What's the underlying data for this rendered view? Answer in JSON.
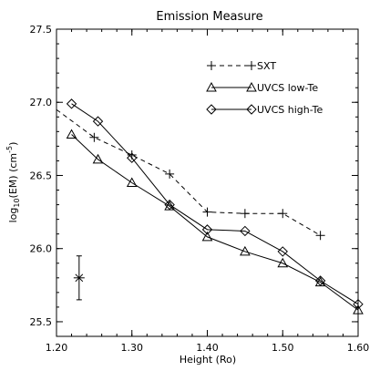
{
  "chart_data": {
    "type": "line",
    "title": "Emission Measure",
    "xlabel": "Height (Ro)",
    "ylabel": {
      "pre": "log",
      "sub": "10",
      "mid": "(EM) (cm",
      "sup": "-5",
      "post": ")"
    },
    "xlim": [
      1.2,
      1.6
    ],
    "ylim": [
      25.4,
      27.5
    ],
    "xticks": [
      1.2,
      1.3,
      1.4,
      1.5,
      1.6
    ],
    "xtick_labels": [
      "1.20",
      "1.30",
      "1.40",
      "1.50",
      "1.60"
    ],
    "yticks": [
      25.5,
      26.0,
      26.5,
      27.0,
      27.5
    ],
    "ytick_labels": [
      "25.5",
      "26.0",
      "26.5",
      "27.0",
      "27.5"
    ],
    "grid": false,
    "legend_position": "top-right",
    "series": [
      {
        "name": "SXT",
        "line": "dashed",
        "marker": "plus",
        "x": [
          1.2,
          1.25,
          1.3,
          1.35,
          1.4,
          1.45,
          1.5,
          1.55
        ],
        "y": [
          26.95,
          26.76,
          26.64,
          26.51,
          26.25,
          26.24,
          26.24,
          26.09
        ],
        "marker_x": [
          1.25,
          1.3,
          1.35,
          1.4,
          1.45,
          1.5,
          1.55
        ],
        "marker_y": [
          26.76,
          26.64,
          26.51,
          26.25,
          26.24,
          26.24,
          26.09
        ]
      },
      {
        "name": "UVCS low-Te",
        "line": "solid",
        "marker": "triangle",
        "x": [
          1.22,
          1.255,
          1.3,
          1.35,
          1.4,
          1.45,
          1.5,
          1.55,
          1.6
        ],
        "y": [
          26.78,
          26.61,
          26.45,
          26.29,
          26.08,
          25.98,
          25.9,
          25.77,
          25.58
        ],
        "marker_x": [
          1.22,
          1.255,
          1.3,
          1.35,
          1.4,
          1.45,
          1.5,
          1.55,
          1.6
        ],
        "marker_y": [
          26.78,
          26.61,
          26.45,
          26.29,
          26.08,
          25.98,
          25.9,
          25.77,
          25.58
        ]
      },
      {
        "name": "UVCS high-Te",
        "line": "solid",
        "marker": "diamond",
        "x": [
          1.22,
          1.255,
          1.3,
          1.35,
          1.4,
          1.45,
          1.5,
          1.55,
          1.6
        ],
        "y": [
          26.99,
          26.87,
          26.62,
          26.3,
          26.13,
          26.12,
          25.98,
          25.78,
          25.62
        ],
        "marker_x": [
          1.22,
          1.255,
          1.3,
          1.35,
          1.4,
          1.45,
          1.5,
          1.55,
          1.6
        ],
        "marker_y": [
          26.99,
          26.87,
          26.62,
          26.3,
          26.13,
          26.12,
          25.98,
          25.78,
          25.62
        ]
      }
    ],
    "error_bar_sample": {
      "x": 1.23,
      "y": 25.8,
      "yerr_low": 25.65,
      "yerr_high": 25.95
    }
  },
  "colors": {
    "ink": "#000000",
    "background": "#ffffff"
  }
}
